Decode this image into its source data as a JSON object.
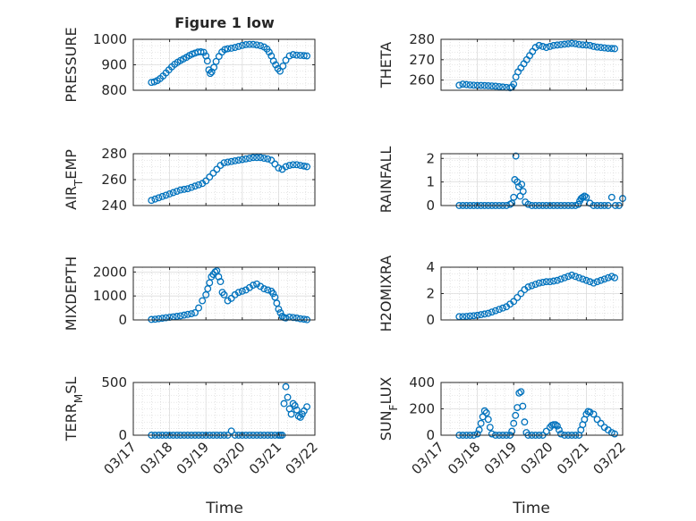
{
  "figure": {
    "title": "Figure 1 low",
    "xlabel_left": "Time",
    "xlabel_right": "Time",
    "x_tick_labels": [
      "03/17",
      "03/18",
      "03/19",
      "03/20",
      "03/21",
      "03/22"
    ],
    "marker_color": "#0072BD"
  },
  "chart_data": [
    {
      "type": "scatter",
      "ylabel": "PRESSURE",
      "xlim": [
        0,
        5
      ],
      "ylim": [
        800,
        1000
      ],
      "yticks": [
        800,
        900,
        1000
      ],
      "x": [
        0.5,
        0.58,
        0.66,
        0.74,
        0.82,
        0.9,
        0.98,
        1.06,
        1.14,
        1.22,
        1.3,
        1.38,
        1.46,
        1.54,
        1.62,
        1.7,
        1.78,
        1.86,
        1.94,
        2.0,
        2.04,
        2.08,
        2.12,
        2.16,
        2.22,
        2.28,
        2.36,
        2.44,
        2.52,
        2.6,
        2.7,
        2.8,
        2.9,
        3.0,
        3.1,
        3.2,
        3.3,
        3.4,
        3.5,
        3.6,
        3.68,
        3.74,
        3.8,
        3.86,
        3.92,
        3.98,
        4.04,
        4.12,
        4.2,
        4.3,
        4.4,
        4.5,
        4.6,
        4.7,
        4.78
      ],
      "y": [
        831,
        833,
        838,
        846,
        856,
        868,
        880,
        892,
        902,
        910,
        917,
        923,
        929,
        936,
        942,
        946,
        950,
        951,
        949,
        935,
        915,
        880,
        866,
        872,
        890,
        913,
        933,
        950,
        960,
        963,
        965,
        968,
        972,
        976,
        979,
        980,
        980,
        978,
        975,
        970,
        962,
        950,
        935,
        915,
        900,
        885,
        875,
        895,
        918,
        935,
        940,
        938,
        937,
        936,
        935
      ]
    },
    {
      "type": "scatter",
      "ylabel": "THETA",
      "xlim": [
        0,
        5
      ],
      "ylim": [
        255,
        280
      ],
      "yticks": [
        260,
        270,
        280
      ],
      "x": [
        0.5,
        0.6,
        0.7,
        0.8,
        0.9,
        1.0,
        1.1,
        1.2,
        1.3,
        1.4,
        1.5,
        1.6,
        1.7,
        1.8,
        1.9,
        1.95,
        2.0,
        2.06,
        2.12,
        2.2,
        2.28,
        2.36,
        2.44,
        2.52,
        2.6,
        2.7,
        2.8,
        2.9,
        3.0,
        3.1,
        3.2,
        3.3,
        3.4,
        3.5,
        3.6,
        3.7,
        3.8,
        3.9,
        4.0,
        4.1,
        4.2,
        4.3,
        4.4,
        4.5,
        4.6,
        4.7,
        4.78
      ],
      "y": [
        257.5,
        258,
        257.8,
        257.6,
        257.5,
        257.4,
        257.4,
        257.3,
        257.2,
        257.1,
        257,
        256.8,
        256.6,
        256.4,
        256.2,
        256.6,
        258,
        261.5,
        264,
        266,
        268,
        270,
        272,
        274,
        276,
        277,
        276.5,
        276,
        276.5,
        277,
        277.2,
        277.4,
        277.6,
        277.8,
        278,
        277.8,
        277.5,
        277.3,
        277.2,
        277,
        276.5,
        276.2,
        276,
        275.8,
        275.6,
        275.5,
        275.4
      ]
    },
    {
      "type": "scatter",
      "ylabel": "AIRTEMP",
      "xlim": [
        0,
        5
      ],
      "ylim": [
        240,
        280
      ],
      "yticks": [
        240,
        260,
        280
      ],
      "x": [
        0.5,
        0.6,
        0.7,
        0.8,
        0.9,
        1.0,
        1.1,
        1.2,
        1.3,
        1.4,
        1.5,
        1.6,
        1.7,
        1.8,
        1.9,
        2.0,
        2.1,
        2.2,
        2.3,
        2.4,
        2.5,
        2.6,
        2.7,
        2.8,
        2.9,
        3.0,
        3.1,
        3.2,
        3.3,
        3.4,
        3.5,
        3.6,
        3.7,
        3.8,
        3.9,
        4.0,
        4.1,
        4.2,
        4.3,
        4.4,
        4.5,
        4.6,
        4.7,
        4.78
      ],
      "y": [
        244,
        245,
        246,
        247,
        248,
        249,
        250,
        251,
        252,
        252.5,
        253,
        254,
        255,
        256,
        257,
        259,
        262,
        265,
        268,
        271,
        273,
        273.5,
        274,
        274.5,
        275,
        275.5,
        276,
        276.5,
        277,
        277,
        277,
        276.5,
        276,
        275,
        272,
        269,
        268,
        270,
        271,
        271.5,
        271.5,
        271,
        270.5,
        270
      ]
    },
    {
      "type": "scatter",
      "ylabel": "RAINFALL",
      "xlim": [
        0,
        5
      ],
      "ylim": [
        0,
        2.2
      ],
      "yticks": [
        0,
        1,
        2
      ],
      "x": [
        0.5,
        0.6,
        0.7,
        0.8,
        0.9,
        1.0,
        1.1,
        1.2,
        1.3,
        1.4,
        1.5,
        1.6,
        1.7,
        1.8,
        1.9,
        1.95,
        2.0,
        2.03,
        2.06,
        2.1,
        2.14,
        2.18,
        2.22,
        2.26,
        2.32,
        2.4,
        2.5,
        2.6,
        2.7,
        2.8,
        2.9,
        3.0,
        3.1,
        3.2,
        3.3,
        3.4,
        3.5,
        3.6,
        3.7,
        3.78,
        3.82,
        3.86,
        3.9,
        3.95,
        4.0,
        4.1,
        4.2,
        4.3,
        4.4,
        4.5,
        4.6,
        4.7,
        4.8,
        4.9,
        5.0
      ],
      "y": [
        0,
        0,
        0,
        0,
        0,
        0,
        0,
        0,
        0,
        0,
        0,
        0,
        0,
        0,
        0.05,
        0.1,
        0.35,
        1.1,
        2.1,
        1.0,
        0.8,
        0.4,
        0.9,
        0.6,
        0.15,
        0.05,
        0,
        0,
        0,
        0,
        0,
        0,
        0,
        0,
        0,
        0,
        0,
        0,
        0,
        0.05,
        0.2,
        0.3,
        0.35,
        0.4,
        0.35,
        0.1,
        0,
        0,
        0,
        0,
        0,
        0.35,
        0,
        0,
        0.3
      ]
    },
    {
      "type": "scatter",
      "ylabel": "MIXDEPTH",
      "xlim": [
        0,
        5
      ],
      "ylim": [
        0,
        2200
      ],
      "yticks": [
        0,
        1000,
        2000
      ],
      "x": [
        0.5,
        0.6,
        0.7,
        0.8,
        0.9,
        1.0,
        1.1,
        1.2,
        1.3,
        1.4,
        1.5,
        1.6,
        1.7,
        1.8,
        1.9,
        2.0,
        2.05,
        2.1,
        2.15,
        2.2,
        2.25,
        2.3,
        2.35,
        2.4,
        2.45,
        2.5,
        2.6,
        2.7,
        2.8,
        2.9,
        3.0,
        3.1,
        3.2,
        3.3,
        3.4,
        3.5,
        3.6,
        3.7,
        3.8,
        3.85,
        3.9,
        3.95,
        4.0,
        4.05,
        4.1,
        4.15,
        4.2,
        4.3,
        4.4,
        4.5,
        4.6,
        4.7,
        4.78
      ],
      "y": [
        20,
        30,
        50,
        70,
        90,
        110,
        130,
        150,
        170,
        200,
        230,
        260,
        300,
        500,
        800,
        1050,
        1300,
        1550,
        1800,
        1900,
        2000,
        2050,
        1800,
        1600,
        1150,
        1050,
        800,
        900,
        1050,
        1150,
        1200,
        1250,
        1350,
        1450,
        1500,
        1400,
        1300,
        1250,
        1200,
        1100,
        950,
        700,
        450,
        300,
        150,
        100,
        80,
        120,
        100,
        80,
        50,
        30,
        10
      ]
    },
    {
      "type": "scatter",
      "ylabel": "H2OMIXRA",
      "xlim": [
        0,
        5
      ],
      "ylim": [
        0,
        4
      ],
      "yticks": [
        0,
        2,
        4
      ],
      "x": [
        0.5,
        0.6,
        0.7,
        0.8,
        0.9,
        1.0,
        1.1,
        1.2,
        1.3,
        1.4,
        1.5,
        1.6,
        1.7,
        1.8,
        1.9,
        2.0,
        2.1,
        2.2,
        2.3,
        2.4,
        2.5,
        2.6,
        2.7,
        2.8,
        2.9,
        3.0,
        3.1,
        3.2,
        3.3,
        3.4,
        3.5,
        3.6,
        3.7,
        3.8,
        3.9,
        4.0,
        4.1,
        4.2,
        4.3,
        4.4,
        4.5,
        4.6,
        4.7,
        4.78
      ],
      "y": [
        0.25,
        0.25,
        0.27,
        0.3,
        0.32,
        0.35,
        0.4,
        0.45,
        0.5,
        0.6,
        0.7,
        0.8,
        0.9,
        1.0,
        1.2,
        1.4,
        1.7,
        2.0,
        2.3,
        2.5,
        2.6,
        2.7,
        2.8,
        2.85,
        2.9,
        2.9,
        2.95,
        3.0,
        3.1,
        3.2,
        3.3,
        3.4,
        3.3,
        3.2,
        3.1,
        3.0,
        2.9,
        2.8,
        2.9,
        3.0,
        3.1,
        3.2,
        3.3,
        3.2
      ]
    },
    {
      "type": "scatter",
      "ylabel": "TERRMSL",
      "xlim": [
        0,
        5
      ],
      "ylim": [
        0,
        500
      ],
      "yticks": [
        0,
        500
      ],
      "x": [
        0.5,
        0.6,
        0.7,
        0.8,
        0.9,
        1.0,
        1.1,
        1.2,
        1.3,
        1.4,
        1.5,
        1.6,
        1.7,
        1.8,
        1.9,
        2.0,
        2.1,
        2.2,
        2.3,
        2.4,
        2.5,
        2.6,
        2.7,
        2.8,
        2.9,
        3.0,
        3.1,
        3.2,
        3.3,
        3.4,
        3.5,
        3.6,
        3.7,
        3.8,
        3.9,
        4.0,
        4.05,
        4.1,
        4.15,
        4.2,
        4.25,
        4.3,
        4.35,
        4.4,
        4.45,
        4.5,
        4.55,
        4.6,
        4.65,
        4.7,
        4.78
      ],
      "y": [
        0,
        0,
        0,
        0,
        0,
        0,
        0,
        0,
        0,
        0,
        0,
        0,
        0,
        0,
        0,
        0,
        0,
        0,
        0,
        0,
        0,
        0,
        40,
        0,
        0,
        0,
        0,
        0,
        0,
        0,
        0,
        0,
        0,
        0,
        0,
        0,
        0,
        0,
        300,
        460,
        360,
        250,
        200,
        300,
        280,
        240,
        180,
        170,
        200,
        230,
        270
      ]
    },
    {
      "type": "scatter",
      "ylabel": "SUNFLUX",
      "xlim": [
        0,
        5
      ],
      "ylim": [
        0,
        400
      ],
      "yticks": [
        0,
        200,
        400
      ],
      "x": [
        0.5,
        0.6,
        0.7,
        0.8,
        0.9,
        1.0,
        1.05,
        1.1,
        1.15,
        1.2,
        1.25,
        1.3,
        1.35,
        1.4,
        1.5,
        1.6,
        1.7,
        1.8,
        1.9,
        1.95,
        2.0,
        2.05,
        2.1,
        2.15,
        2.2,
        2.25,
        2.3,
        2.35,
        2.4,
        2.5,
        2.6,
        2.7,
        2.8,
        2.9,
        3.0,
        3.05,
        3.1,
        3.15,
        3.2,
        3.25,
        3.3,
        3.4,
        3.5,
        3.6,
        3.7,
        3.8,
        3.85,
        3.9,
        3.95,
        4.0,
        4.05,
        4.1,
        4.2,
        4.3,
        4.4,
        4.5,
        4.6,
        4.7,
        4.78
      ],
      "y": [
        0,
        0,
        0,
        0,
        0,
        10,
        40,
        90,
        140,
        185,
        170,
        120,
        60,
        10,
        0,
        0,
        0,
        0,
        0,
        30,
        90,
        150,
        210,
        320,
        330,
        220,
        100,
        20,
        0,
        0,
        0,
        0,
        0,
        30,
        60,
        75,
        80,
        80,
        70,
        40,
        10,
        0,
        0,
        0,
        0,
        0,
        40,
        80,
        120,
        160,
        180,
        175,
        160,
        120,
        90,
        60,
        40,
        20,
        10
      ]
    }
  ]
}
